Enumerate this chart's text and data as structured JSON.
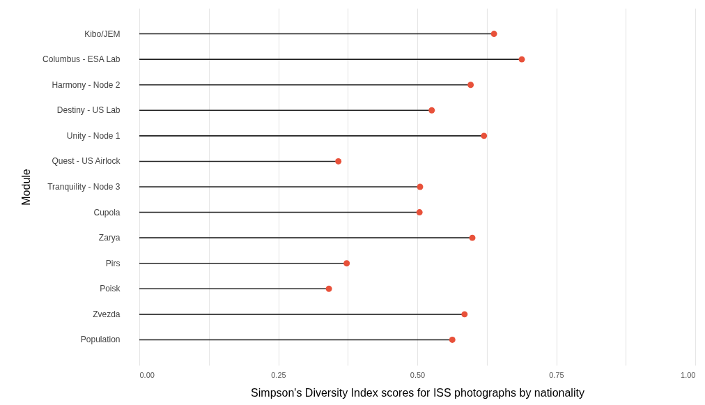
{
  "chart_data": {
    "type": "lollipop",
    "orientation": "horizontal",
    "xlabel": "Simpson's Diversity Index scores for ISS photographs by nationality",
    "ylabel": "Module",
    "categories": [
      "Kibo/JEM",
      "Columbus - ESA Lab",
      "Harmony - Node 2",
      "Destiny - US Lab",
      "Unity - Node 1",
      "Quest - US Airlock",
      "Tranquility - Node 3",
      "Cupola",
      "Zarya",
      "Pirs",
      "Poisk",
      "Zvezda",
      "Population"
    ],
    "values": [
      0.638,
      0.688,
      0.596,
      0.526,
      0.62,
      0.358,
      0.505,
      0.504,
      0.599,
      0.373,
      0.341,
      0.585,
      0.563
    ],
    "color": "#e8513a",
    "marker": "circle",
    "grid": true,
    "xlim": [
      0,
      1
    ],
    "xticks": [
      {
        "value": 0,
        "label": "0.00"
      },
      {
        "value": 0.125,
        "label": null
      },
      {
        "value": 0.25,
        "label": "0.25"
      },
      {
        "value": 0.375,
        "label": null
      },
      {
        "value": 0.5,
        "label": "0.50"
      },
      {
        "value": 0.625,
        "label": null
      },
      {
        "value": 0.75,
        "label": "0.75"
      },
      {
        "value": 0.875,
        "label": null
      },
      {
        "value": 1,
        "label": "1.00"
      }
    ]
  }
}
